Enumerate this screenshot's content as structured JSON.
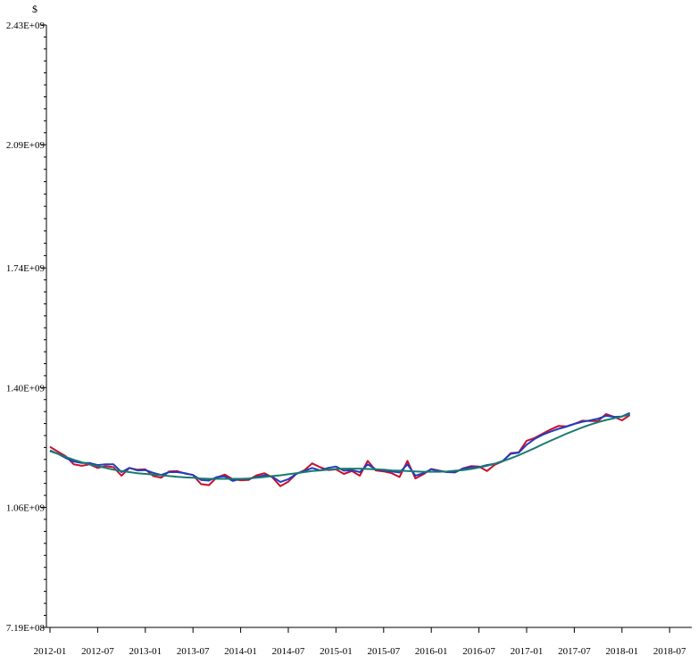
{
  "chart_data": {
    "type": "line",
    "title": "",
    "xlabel": "",
    "ylabel": "$",
    "ylim": [
      719000000,
      2430000000
    ],
    "xlim": [
      "2012-01",
      "2018-07"
    ],
    "y_ticks": [
      {
        "value": 719000000,
        "label": "7.19E+08"
      },
      {
        "value": 1060000000,
        "label": "1.06E+09"
      },
      {
        "value": 1400000000,
        "label": "1.40E+09"
      },
      {
        "value": 1740000000,
        "label": "1.74E+09"
      },
      {
        "value": 2090000000,
        "label": "2.09E+09"
      },
      {
        "value": 2430000000,
        "label": "2.43E+09"
      }
    ],
    "x_ticks": [
      "2012-01",
      "2012-07",
      "2013-01",
      "2013-07",
      "2014-01",
      "2014-07",
      "2015-01",
      "2015-07",
      "2016-01",
      "2016-07",
      "2017-01",
      "2017-07",
      "2018-01",
      "2018-07"
    ],
    "legend": "none",
    "grid": false,
    "x": [
      "2012-01",
      "2012-02",
      "2012-03",
      "2012-04",
      "2012-05",
      "2012-06",
      "2012-07",
      "2012-08",
      "2012-09",
      "2012-10",
      "2012-11",
      "2012-12",
      "2013-01",
      "2013-02",
      "2013-03",
      "2013-04",
      "2013-05",
      "2013-06",
      "2013-07",
      "2013-08",
      "2013-09",
      "2013-10",
      "2013-11",
      "2013-12",
      "2014-01",
      "2014-02",
      "2014-03",
      "2014-04",
      "2014-05",
      "2014-06",
      "2014-07",
      "2014-08",
      "2014-09",
      "2014-10",
      "2014-11",
      "2014-12",
      "2015-01",
      "2015-02",
      "2015-03",
      "2015-04",
      "2015-05",
      "2015-06",
      "2015-07",
      "2015-08",
      "2015-09",
      "2015-10",
      "2015-11",
      "2015-12",
      "2016-01",
      "2016-02",
      "2016-03",
      "2016-04",
      "2016-05",
      "2016-06",
      "2016-07",
      "2016-08",
      "2016-09",
      "2016-10",
      "2016-11",
      "2016-12",
      "2017-01",
      "2017-02",
      "2017-03",
      "2017-04",
      "2017-05",
      "2017-06",
      "2017-07",
      "2017-08",
      "2017-09",
      "2017-10",
      "2017-11",
      "2017-12",
      "2018-01",
      "2018-02"
    ],
    "series": [
      {
        "color": "#c8102e",
        "values": [
          1232,
          1218,
          1205,
          1182,
          1178,
          1182,
          1172,
          1177,
          1174,
          1150,
          1172,
          1167,
          1168,
          1149,
          1144,
          1162,
          1163,
          1156,
          1152,
          1126,
          1123,
          1145,
          1153,
          1140,
          1137,
          1138,
          1151,
          1157,
          1145,
          1120,
          1133,
          1155,
          1165,
          1185,
          1174,
          1166,
          1168,
          1155,
          1163,
          1150,
          1192,
          1165,
          1162,
          1157,
          1146,
          1192,
          1142,
          1154,
          1169,
          1164,
          1160,
          1159,
          1171,
          1177,
          1176,
          1163,
          1181,
          1191,
          1214,
          1216,
          1249,
          1257,
          1269,
          1281,
          1291,
          1290,
          1297,
          1306,
          1305,
          1305,
          1325,
          1317,
          1307,
          1322
        ]
      },
      {
        "color": "#1f3fbf",
        "values": [
          1220,
          1212,
          1200,
          1190,
          1186,
          1186,
          1180,
          1182,
          1182,
          1160,
          1172,
          1165,
          1166,
          1158,
          1152,
          1160,
          1160,
          1157,
          1152,
          1138,
          1136,
          1146,
          1148,
          1135,
          1141,
          1141,
          1146,
          1151,
          1147,
          1132,
          1140,
          1155,
          1163,
          1172,
          1165,
          1172,
          1176,
          1164,
          1166,
          1160,
          1182,
          1168,
          1165,
          1162,
          1159,
          1182,
          1150,
          1157,
          1168,
          1163,
          1160,
          1160,
          1170,
          1174,
          1174,
          1180,
          1184,
          1192,
          1212,
          1215,
          1238,
          1254,
          1266,
          1275,
          1283,
          1289,
          1297,
          1303,
          1307,
          1312,
          1320,
          1317,
          1318,
          1328
        ]
      },
      {
        "color": "#1a7a6e",
        "values": [
          1222,
          1212,
          1203,
          1195,
          1188,
          1182,
          1177,
          1172,
          1167,
          1163,
          1160,
          1157,
          1155,
          1153,
          1151,
          1149,
          1147,
          1145,
          1144,
          1142,
          1141,
          1141,
          1141,
          1141,
          1141,
          1142,
          1144,
          1146,
          1149,
          1151,
          1154,
          1157,
          1160,
          1163,
          1165,
          1167,
          1169,
          1170,
          1170,
          1170,
          1169,
          1168,
          1167,
          1165,
          1164,
          1163,
          1162,
          1161,
          1161,
          1161,
          1162,
          1164,
          1166,
          1169,
          1173,
          1178,
          1184,
          1191,
          1199,
          1208,
          1218,
          1228,
          1239,
          1249,
          1259,
          1269,
          1278,
          1287,
          1295,
          1302,
          1308,
          1313,
          1318,
          1324
        ]
      }
    ]
  }
}
